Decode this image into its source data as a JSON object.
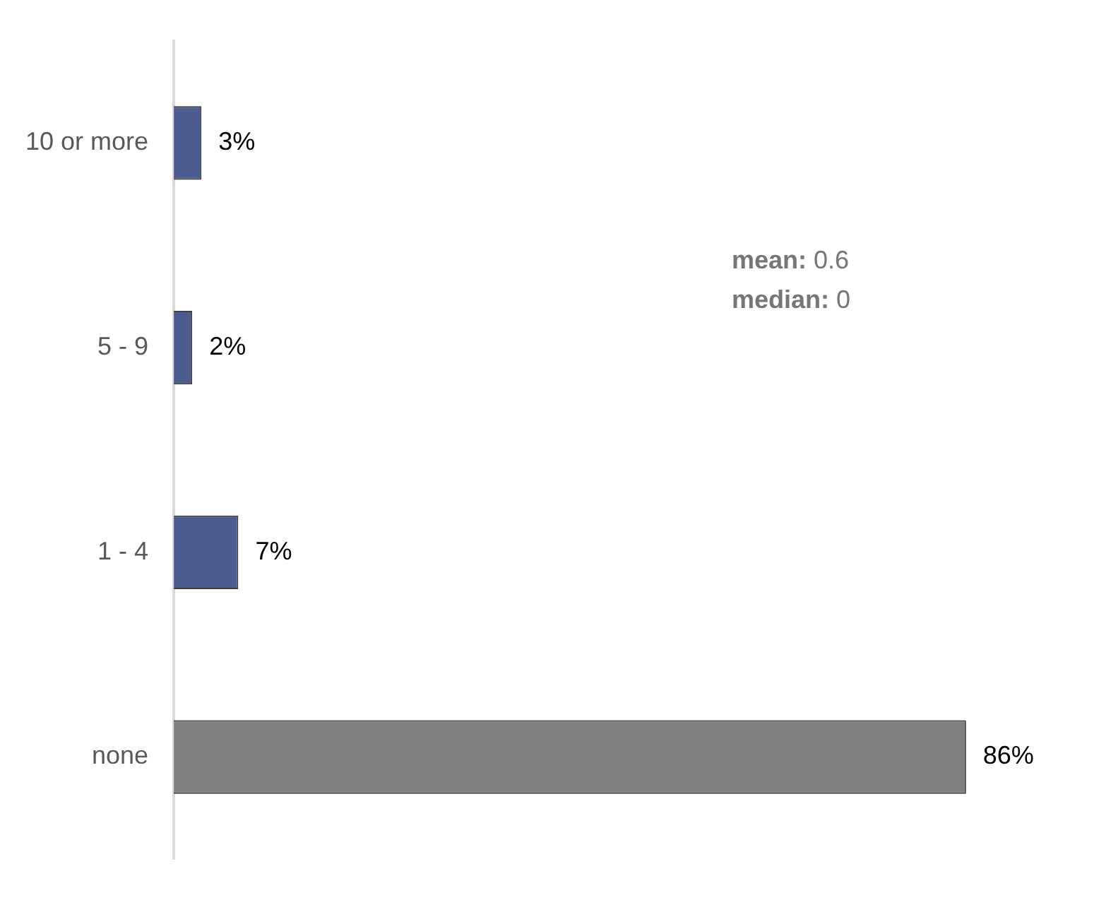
{
  "chart_data": {
    "type": "bar",
    "orientation": "horizontal",
    "categories": [
      "10 or more",
      "5 - 9",
      "1 - 4",
      "none"
    ],
    "values": [
      3,
      2,
      7,
      86
    ],
    "colors": [
      "#4c5c8e",
      "#4c5c8e",
      "#4c5c8e",
      "#808080"
    ],
    "value_labels": [
      "3%",
      "2%",
      "7%",
      "86%"
    ],
    "annotations": [
      "mean: 0.6",
      "median: 0"
    ]
  }
}
